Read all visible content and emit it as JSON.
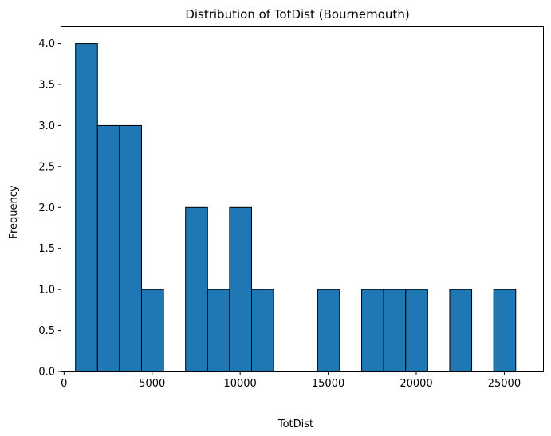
{
  "chart_data": {
    "type": "bar",
    "title": "Distribution of TotDist (Bournemouth)",
    "xlabel": "TotDist",
    "ylabel": "Frequency",
    "xlim": [
      -150,
      27200
    ],
    "ylim": [
      0,
      4.2
    ],
    "x_ticks": [
      0,
      5000,
      10000,
      15000,
      20000,
      25000
    ],
    "y_ticks": [
      0.0,
      0.5,
      1.0,
      1.5,
      2.0,
      2.5,
      3.0,
      3.5,
      4.0
    ],
    "bin_start": 650,
    "bin_width": 1250,
    "counts": [
      4,
      3,
      3,
      1,
      0,
      2,
      1,
      2,
      1,
      0,
      0,
      1,
      0,
      1,
      1,
      1,
      0,
      1,
      0,
      1
    ],
    "bar_color": "#1f77b4",
    "edge_color": "#000000",
    "grid": false
  }
}
